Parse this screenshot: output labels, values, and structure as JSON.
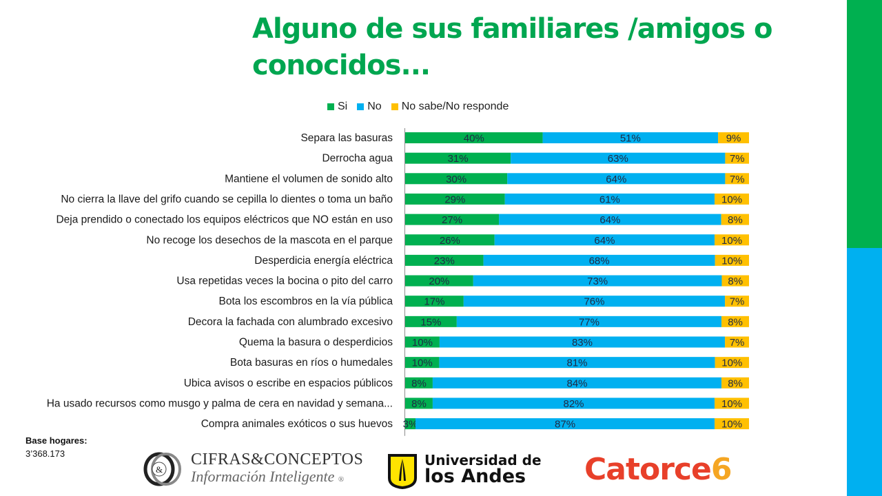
{
  "page": {
    "title_line1": "Alguno de sus familiares /amigos o",
    "title_line2": "conocidos...",
    "base_label": "Base hogares:",
    "base_value": "3’368.173",
    "colors": {
      "title": "#00A650",
      "side_green": "#00B050",
      "side_blue": "#00B0F0"
    }
  },
  "logos": {
    "cifras_line1": "CIFRAS&CONCEPTOS",
    "cifras_line2": "Información Inteligente",
    "cifras_mark": "&",
    "cifras_reg": "®",
    "uniandes_line1": "Universidad de",
    "uniandes_line2": "los Andes",
    "catorce_word": "Catorce",
    "catorce_num": "6",
    "catorce_word_color": "#E8402A",
    "catorce_num_color": "#F5A623",
    "uniandes_shield_color": "#FFE400"
  },
  "chart_data": {
    "type": "bar",
    "orientation": "horizontal",
    "stacked": "percent",
    "title": "Alguno de sus familiares /amigos o conocidos...",
    "xlabel": "",
    "ylabel": "",
    "xlim": [
      0,
      100
    ],
    "grid": false,
    "legend_position": "top",
    "categories": [
      "Separa las basuras",
      "Derrocha agua",
      "Mantiene el volumen de sonido alto",
      "No cierra la llave del grifo cuando se cepilla lo dientes o toma un baño",
      "Deja prendido o conectado los equipos eléctricos que NO están en uso",
      "No recoge los desechos de la mascota en el parque",
      "Desperdicia energía eléctrica",
      "Usa repetidas veces la bocina o pito del carro",
      "Bota los escombros en la vía pública",
      "Decora la fachada con alumbrado excesivo",
      "Quema la basura o desperdicios",
      "Bota basuras en ríos o humedales",
      "Ubica avisos o escribe en espacios públicos",
      "Ha usado recursos como musgo y palma de cera en navidad y semana...",
      "Compra animales exóticos o sus huevos"
    ],
    "series": [
      {
        "name": "Si",
        "color": "#00B050",
        "values": [
          40,
          31,
          30,
          29,
          27,
          26,
          23,
          20,
          17,
          15,
          10,
          10,
          8,
          8,
          3
        ]
      },
      {
        "name": "No",
        "color": "#00B0F0",
        "values": [
          51,
          63,
          64,
          61,
          64,
          64,
          68,
          73,
          76,
          77,
          83,
          81,
          84,
          82,
          87
        ]
      },
      {
        "name": "No sabe/No responde",
        "color": "#FFC000",
        "values": [
          9,
          7,
          7,
          10,
          8,
          10,
          10,
          8,
          7,
          8,
          7,
          10,
          8,
          10,
          10
        ]
      }
    ],
    "value_suffix": "%"
  }
}
